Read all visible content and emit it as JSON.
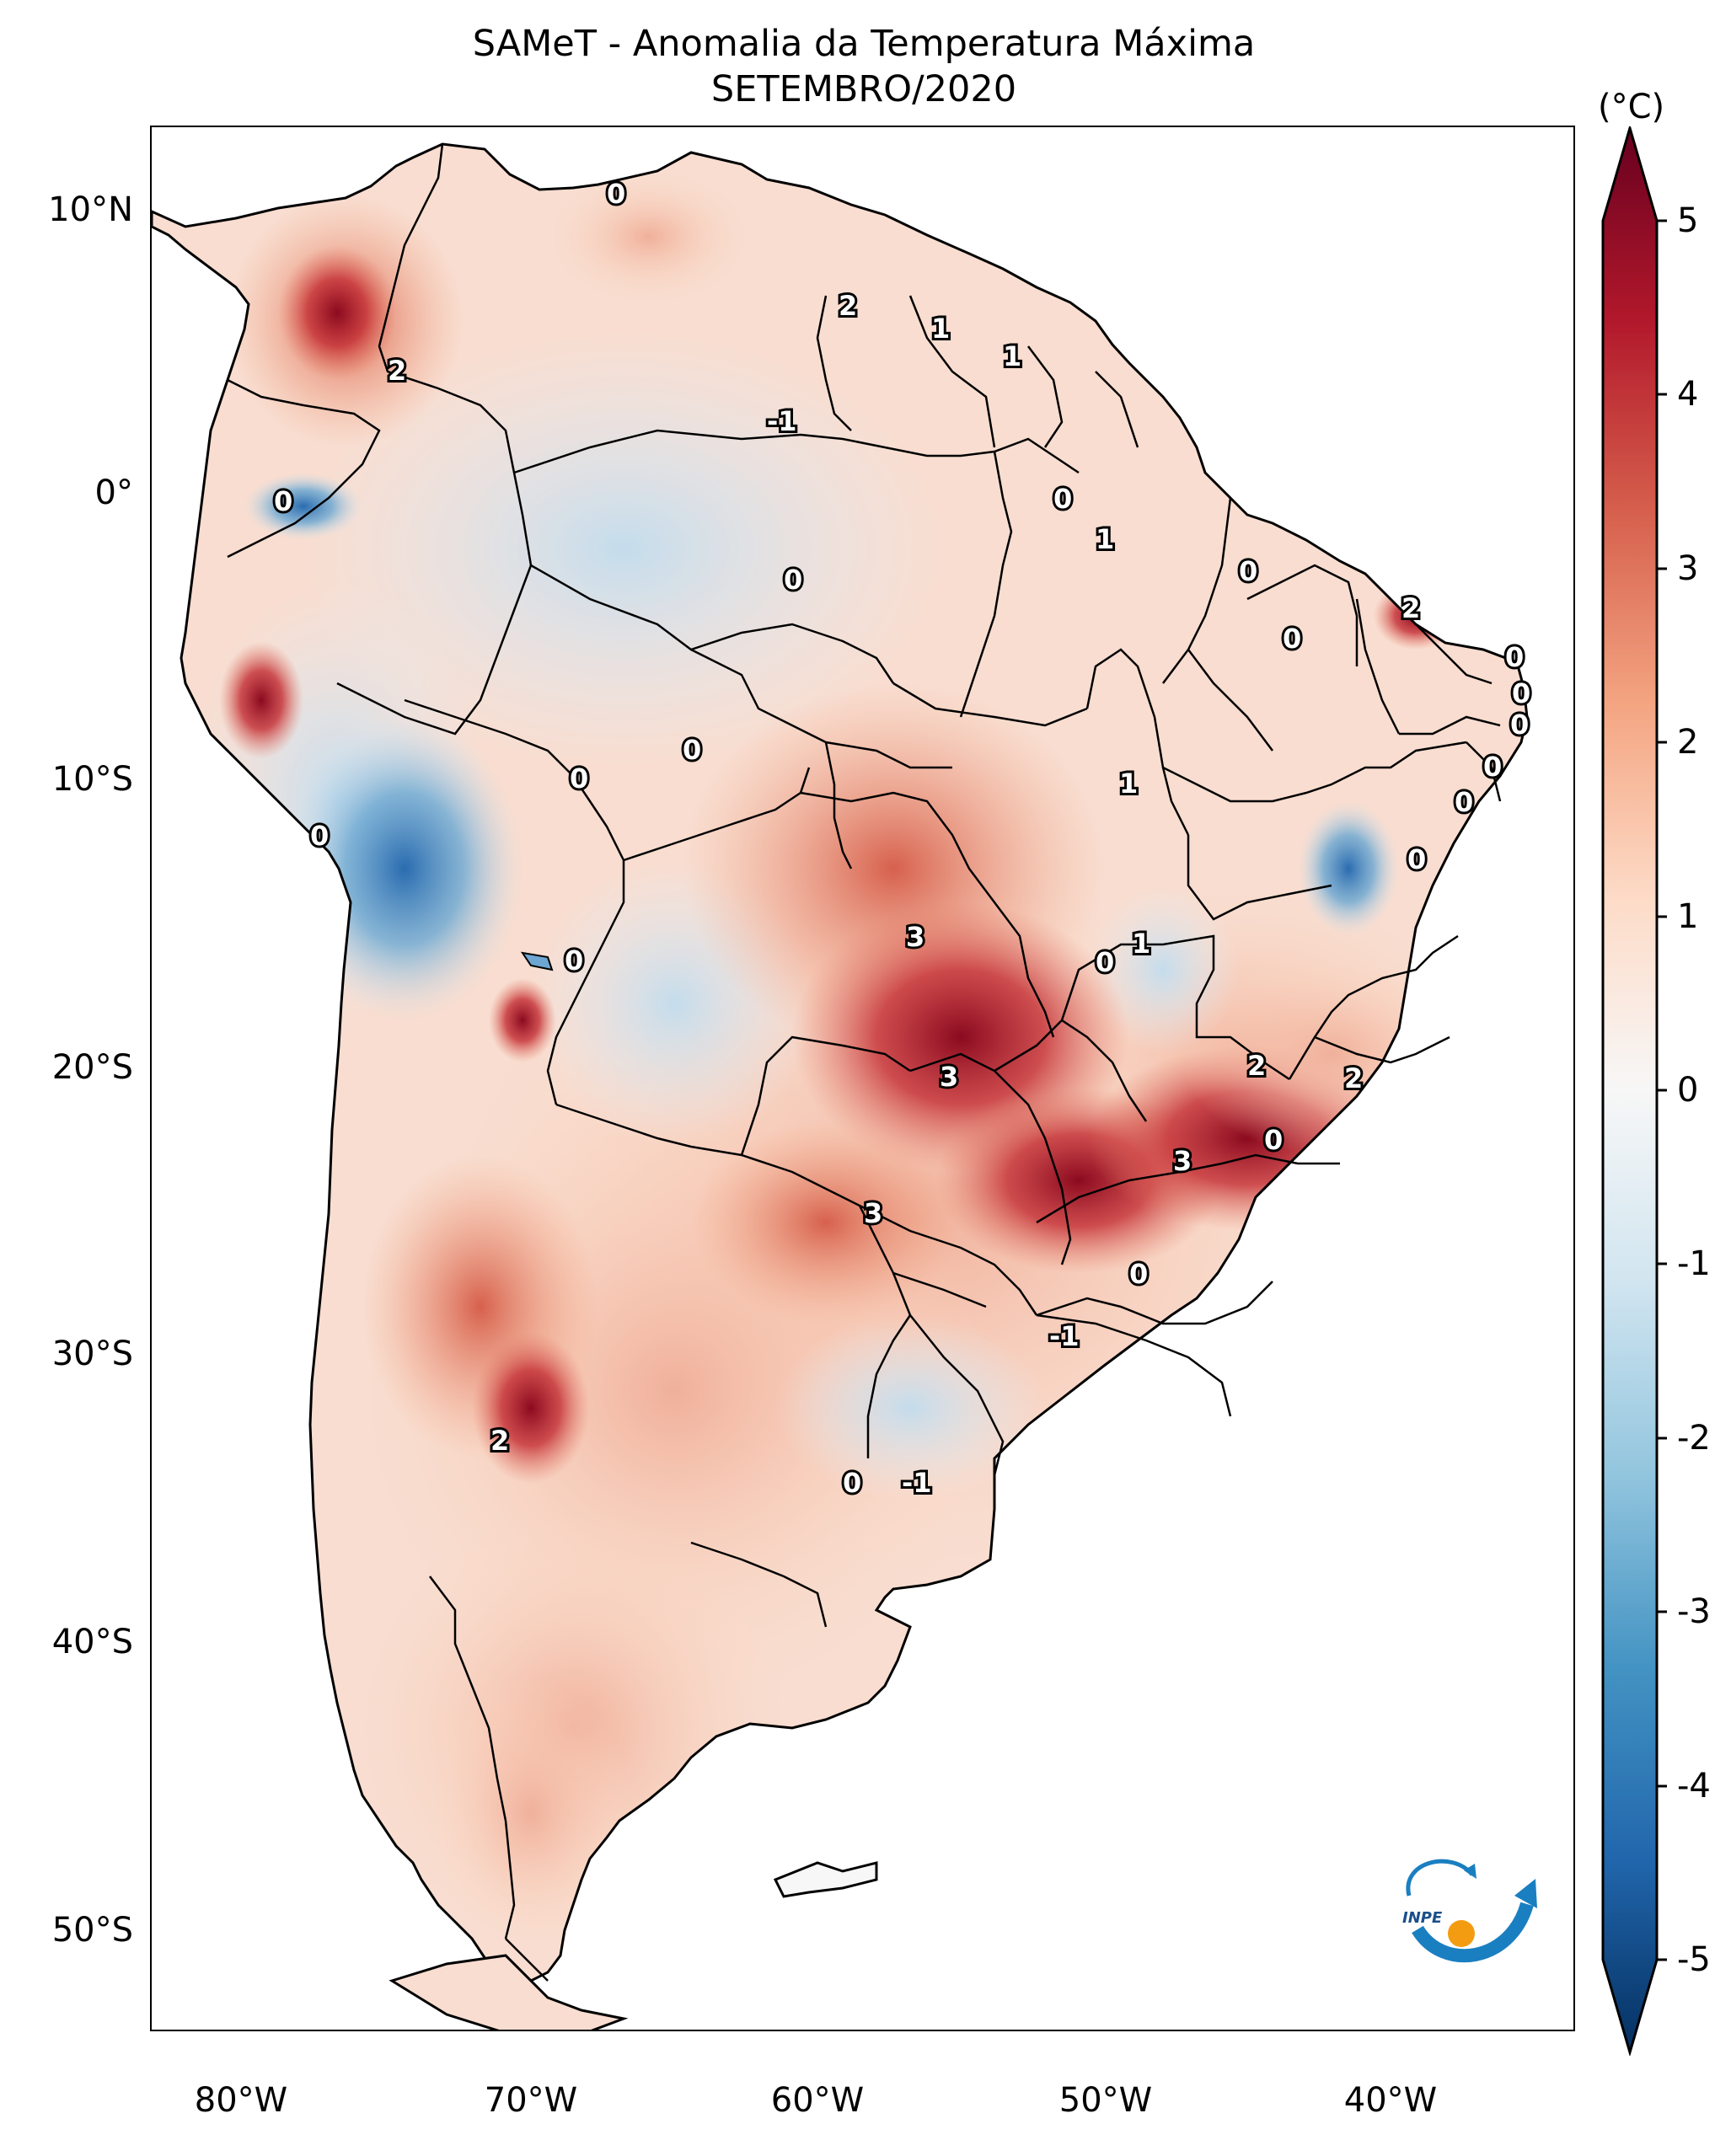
{
  "title": "SAMeT - Anomalia da Temperatura Máxima",
  "subtitle": "SETEMBRO/2020",
  "colorbar": {
    "unit": "(°C)",
    "ticks": [
      "5",
      "4",
      "3",
      "2",
      "1",
      "0",
      "-1",
      "-2",
      "-3",
      "-4",
      "-5"
    ],
    "colors": [
      "#053061",
      "#2166ac",
      "#4393c3",
      "#92c5de",
      "#d1e5f0",
      "#f7f7f7",
      "#fddbc7",
      "#f4a582",
      "#d6604d",
      "#b2182b",
      "#67001f"
    ]
  },
  "latitude_labels": [
    "10°N",
    "0°",
    "10°S",
    "20°S",
    "30°S",
    "40°S",
    "50°S"
  ],
  "longitude_labels": [
    "80°W",
    "70°W",
    "60°W",
    "50°W",
    "40°W"
  ],
  "contour_labels": [
    "0",
    "2",
    "1",
    "1",
    "2",
    "-1",
    "0",
    "0",
    "1",
    "0",
    "0",
    "2",
    "0",
    "0",
    "0",
    "0",
    "0",
    "0",
    "0",
    "0",
    "0",
    "1",
    "0",
    "1",
    "3",
    "0",
    "0",
    "3",
    "2",
    "2",
    "3",
    "0",
    "3",
    "0",
    "-1",
    "2",
    "0",
    "-1"
  ],
  "logo": {
    "text": "INPE",
    "colors": [
      "#1a7fc1",
      "#f39c12"
    ]
  }
}
